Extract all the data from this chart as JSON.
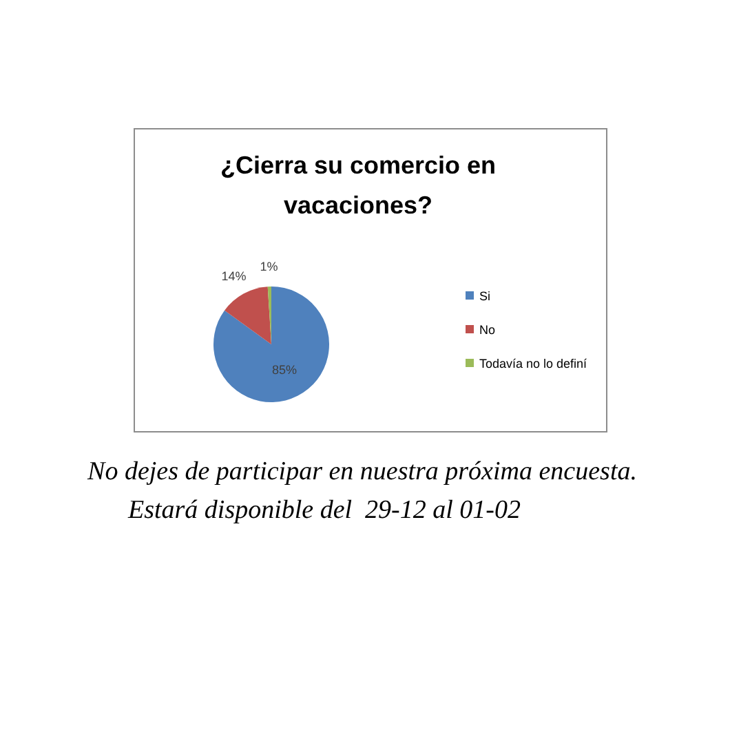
{
  "chart_data": {
    "type": "pie",
    "title": "¿Cierra su comercio en vacaciones?",
    "categories": [
      "Si",
      "No",
      "Todavía no lo definí"
    ],
    "values": [
      85,
      14,
      1
    ],
    "value_labels": [
      "85%",
      "14%",
      "1%"
    ],
    "colors": [
      "#4f81bd",
      "#c0504d",
      "#9bbb59"
    ],
    "legend": "right",
    "annotations": [
      "No dejes de participar en nuestra próxima encuesta.",
      "Estará disponible del  29-12 al 01-02"
    ]
  }
}
